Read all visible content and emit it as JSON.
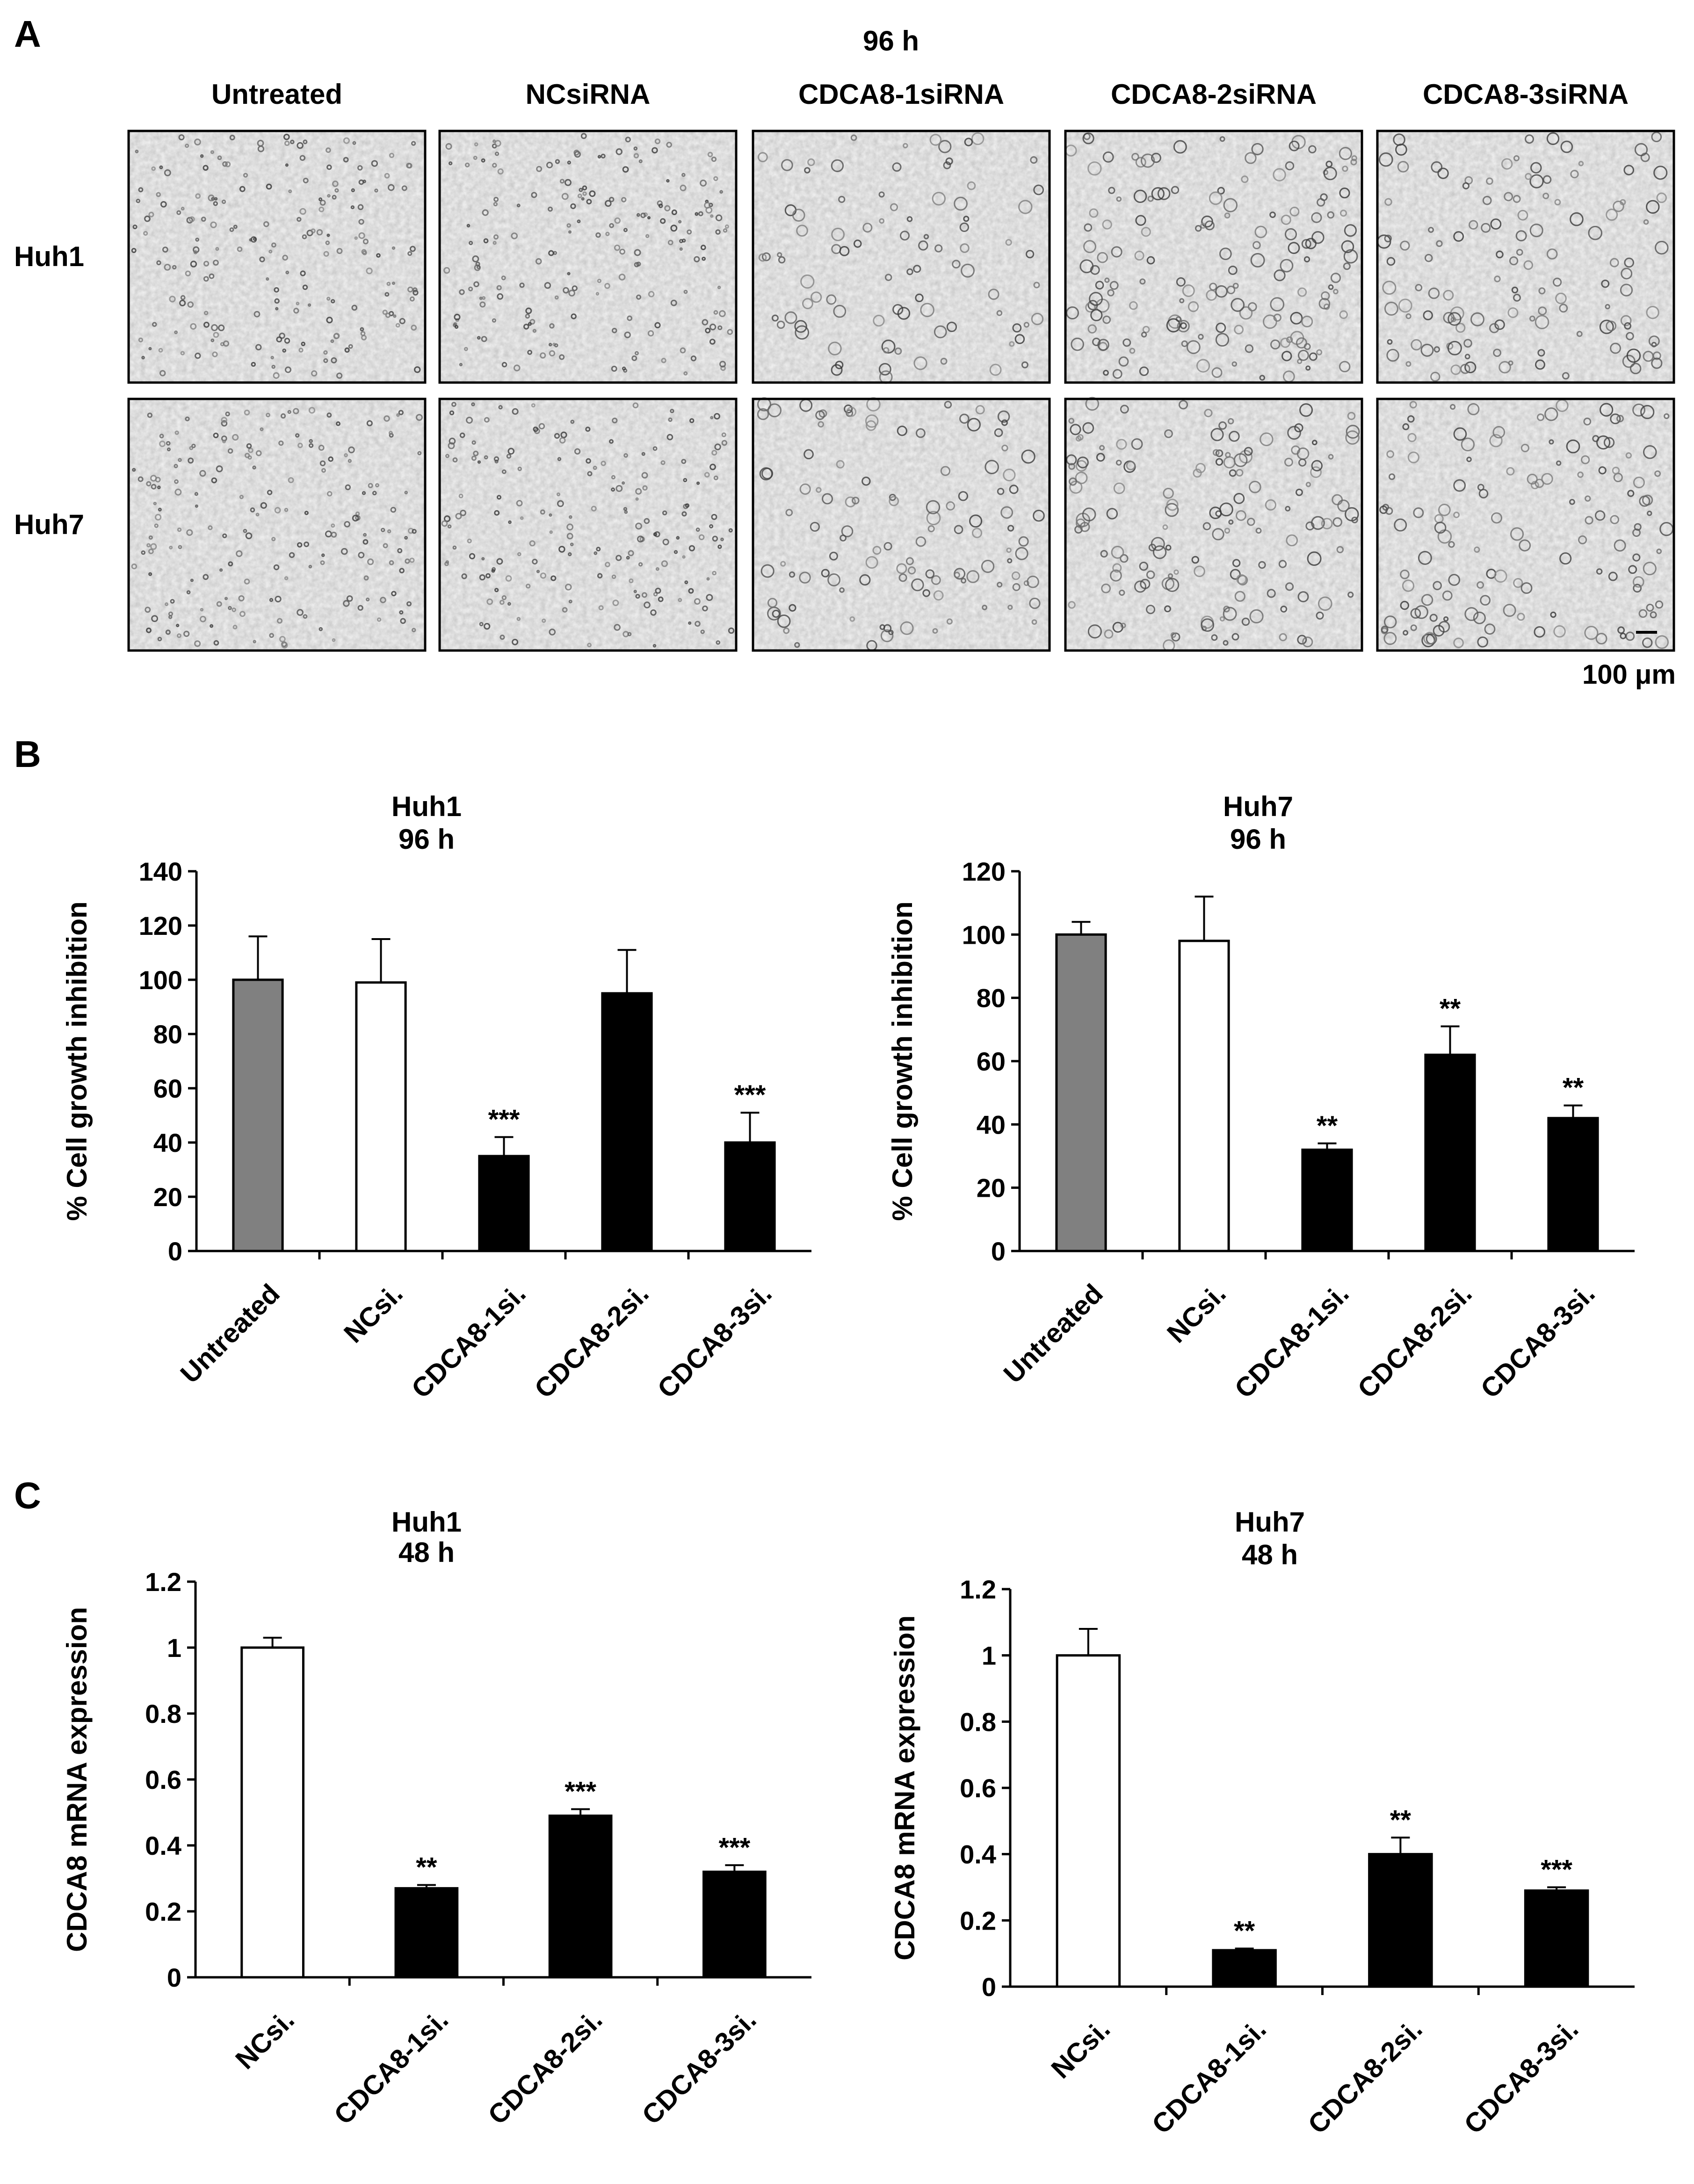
{
  "panels": {
    "A": {
      "letter": "A",
      "time_label": "96 h",
      "columns": [
        "Untreated",
        "NCsiRNA",
        "CDCA8-1siRNA",
        "CDCA8-2siRNA",
        "CDCA8-3siRNA"
      ],
      "rows": [
        "Huh1",
        "Huh7"
      ],
      "density": [
        [
          1.0,
          0.95,
          0.3,
          0.75,
          0.55
        ],
        [
          0.95,
          0.95,
          0.45,
          0.7,
          0.6
        ]
      ],
      "scale_bar_label": "100 μm"
    },
    "B": {
      "letter": "B"
    },
    "C": {
      "letter": "C"
    }
  },
  "chart_data": [
    {
      "id": "B-huh1",
      "type": "bar",
      "title": [
        "Huh1",
        "96 h"
      ],
      "ylabel": "% Cell growth inhibition",
      "categories": [
        "Untreated",
        "NCsi.",
        "CDCA8-1si.",
        "CDCA8-2si.",
        "CDCA8-3si."
      ],
      "values": [
        100,
        99,
        35,
        95,
        40
      ],
      "errors": [
        16,
        16,
        7,
        16,
        11
      ],
      "significance": [
        "",
        "",
        "***",
        "",
        "***"
      ],
      "fill": [
        "#808080",
        "#ffffff",
        "#000000",
        "#000000",
        "#000000"
      ],
      "ylim": [
        0,
        140
      ],
      "yticks": [
        0,
        20,
        40,
        60,
        80,
        100,
        120,
        140
      ],
      "ytick_labels": [
        "0",
        "20",
        "40",
        "60",
        "80",
        "100",
        "120",
        "140"
      ],
      "grid": false
    },
    {
      "id": "B-huh7",
      "type": "bar",
      "title": [
        "Huh7",
        "96 h"
      ],
      "ylabel": "% Cell growth inhibition",
      "categories": [
        "Untreated",
        "NCsi.",
        "CDCA8-1si.",
        "CDCA8-2si.",
        "CDCA8-3si."
      ],
      "values": [
        100,
        98,
        32,
        62,
        42
      ],
      "errors": [
        4,
        14,
        2,
        9,
        4
      ],
      "significance": [
        "",
        "",
        "**",
        "**",
        "**"
      ],
      "fill": [
        "#808080",
        "#ffffff",
        "#000000",
        "#000000",
        "#000000"
      ],
      "ylim": [
        0,
        120
      ],
      "yticks": [
        0,
        20,
        40,
        60,
        80,
        100,
        120
      ],
      "ytick_labels": [
        "0",
        "20",
        "40",
        "60",
        "80",
        "100",
        "120"
      ],
      "grid": false
    },
    {
      "id": "C-huh1",
      "type": "bar",
      "title": [
        "Huh1",
        "48 h"
      ],
      "ylabel": "CDCA8 mRNA expression",
      "categories": [
        "NCsi.",
        "CDCA8-1si.",
        "CDCA8-2si.",
        "CDCA8-3si."
      ],
      "values": [
        1.0,
        0.27,
        0.49,
        0.32
      ],
      "errors": [
        0.03,
        0.01,
        0.02,
        0.02
      ],
      "significance": [
        "",
        "**",
        "***",
        "***"
      ],
      "fill": [
        "#ffffff",
        "#000000",
        "#000000",
        "#000000"
      ],
      "ylim": [
        0,
        1.2
      ],
      "yticks": [
        0,
        0.2,
        0.4,
        0.6,
        0.8,
        1.0,
        1.2
      ],
      "ytick_labels": [
        "0",
        "0.2",
        "0.4",
        "0.6",
        "0.8",
        "1",
        "1.2"
      ],
      "grid": false
    },
    {
      "id": "C-huh7",
      "type": "bar",
      "title": [
        "Huh7",
        "48 h"
      ],
      "ylabel": "CDCA8 mRNA expression",
      "categories": [
        "NCsi.",
        "CDCA8-1si.",
        "CDCA8-2si.",
        "CDCA8-3si."
      ],
      "values": [
        1.0,
        0.11,
        0.4,
        0.29
      ],
      "errors": [
        0.08,
        0.005,
        0.05,
        0.01
      ],
      "significance": [
        "",
        "**",
        "**",
        "***"
      ],
      "fill": [
        "#ffffff",
        "#000000",
        "#000000",
        "#000000"
      ],
      "ylim": [
        0,
        1.2
      ],
      "yticks": [
        0,
        0.2,
        0.4,
        0.6,
        0.8,
        1.0,
        1.2
      ],
      "ytick_labels": [
        "0",
        "0.2",
        "0.4",
        "0.6",
        "0.8",
        "1",
        "1.2"
      ],
      "grid": false
    }
  ]
}
